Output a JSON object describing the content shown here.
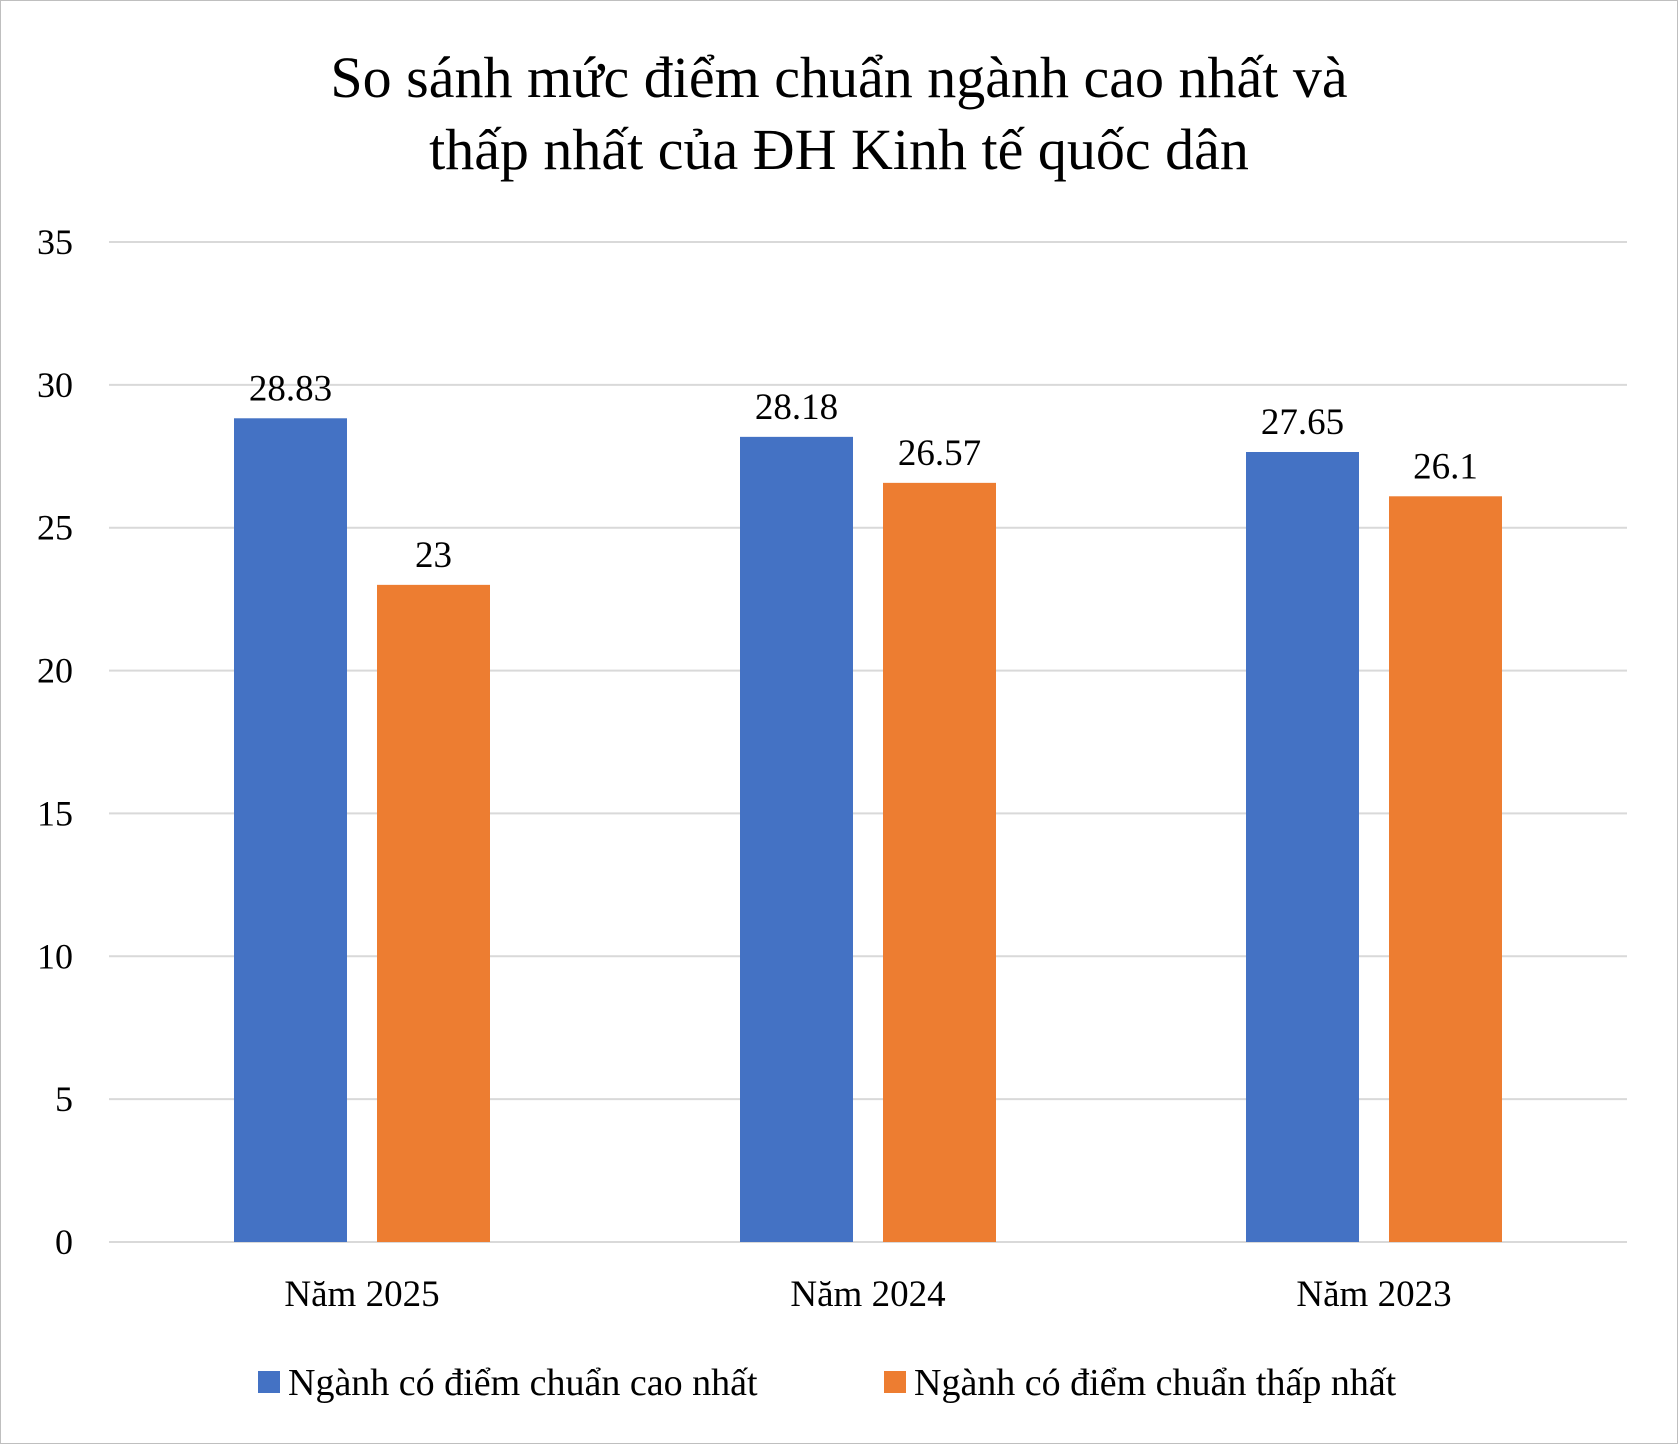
{
  "chart_data": {
    "type": "bar",
    "title": [
      "So sánh mức điểm chuẩn ngành cao nhất và",
      "thấp nhất của ĐH Kinh tế quốc dân"
    ],
    "categories": [
      "Năm 2025",
      "Năm 2024",
      "Năm 2023"
    ],
    "series": [
      {
        "name": "Ngành có điểm chuẩn cao nhất",
        "values": [
          28.83,
          28.18,
          27.65
        ],
        "color": "#4472C4",
        "labels": [
          "28.83",
          "28.18",
          "27.65"
        ]
      },
      {
        "name": "Ngành có điểm chuẩn thấp nhất",
        "values": [
          23,
          26.57,
          26.1
        ],
        "color": "#ED7D31",
        "labels": [
          "23",
          "26.57",
          "26.1"
        ]
      }
    ],
    "ylim": [
      0,
      35
    ],
    "yticks": [
      0,
      5,
      10,
      15,
      20,
      25,
      30,
      35
    ],
    "ytick_labels": [
      "0",
      "5",
      "10",
      "15",
      "20",
      "25",
      "30",
      "35"
    ],
    "xlabel": "",
    "ylabel": "",
    "grid": true,
    "legend": "bottom-center",
    "gridline_color": "#d9d9d9"
  }
}
